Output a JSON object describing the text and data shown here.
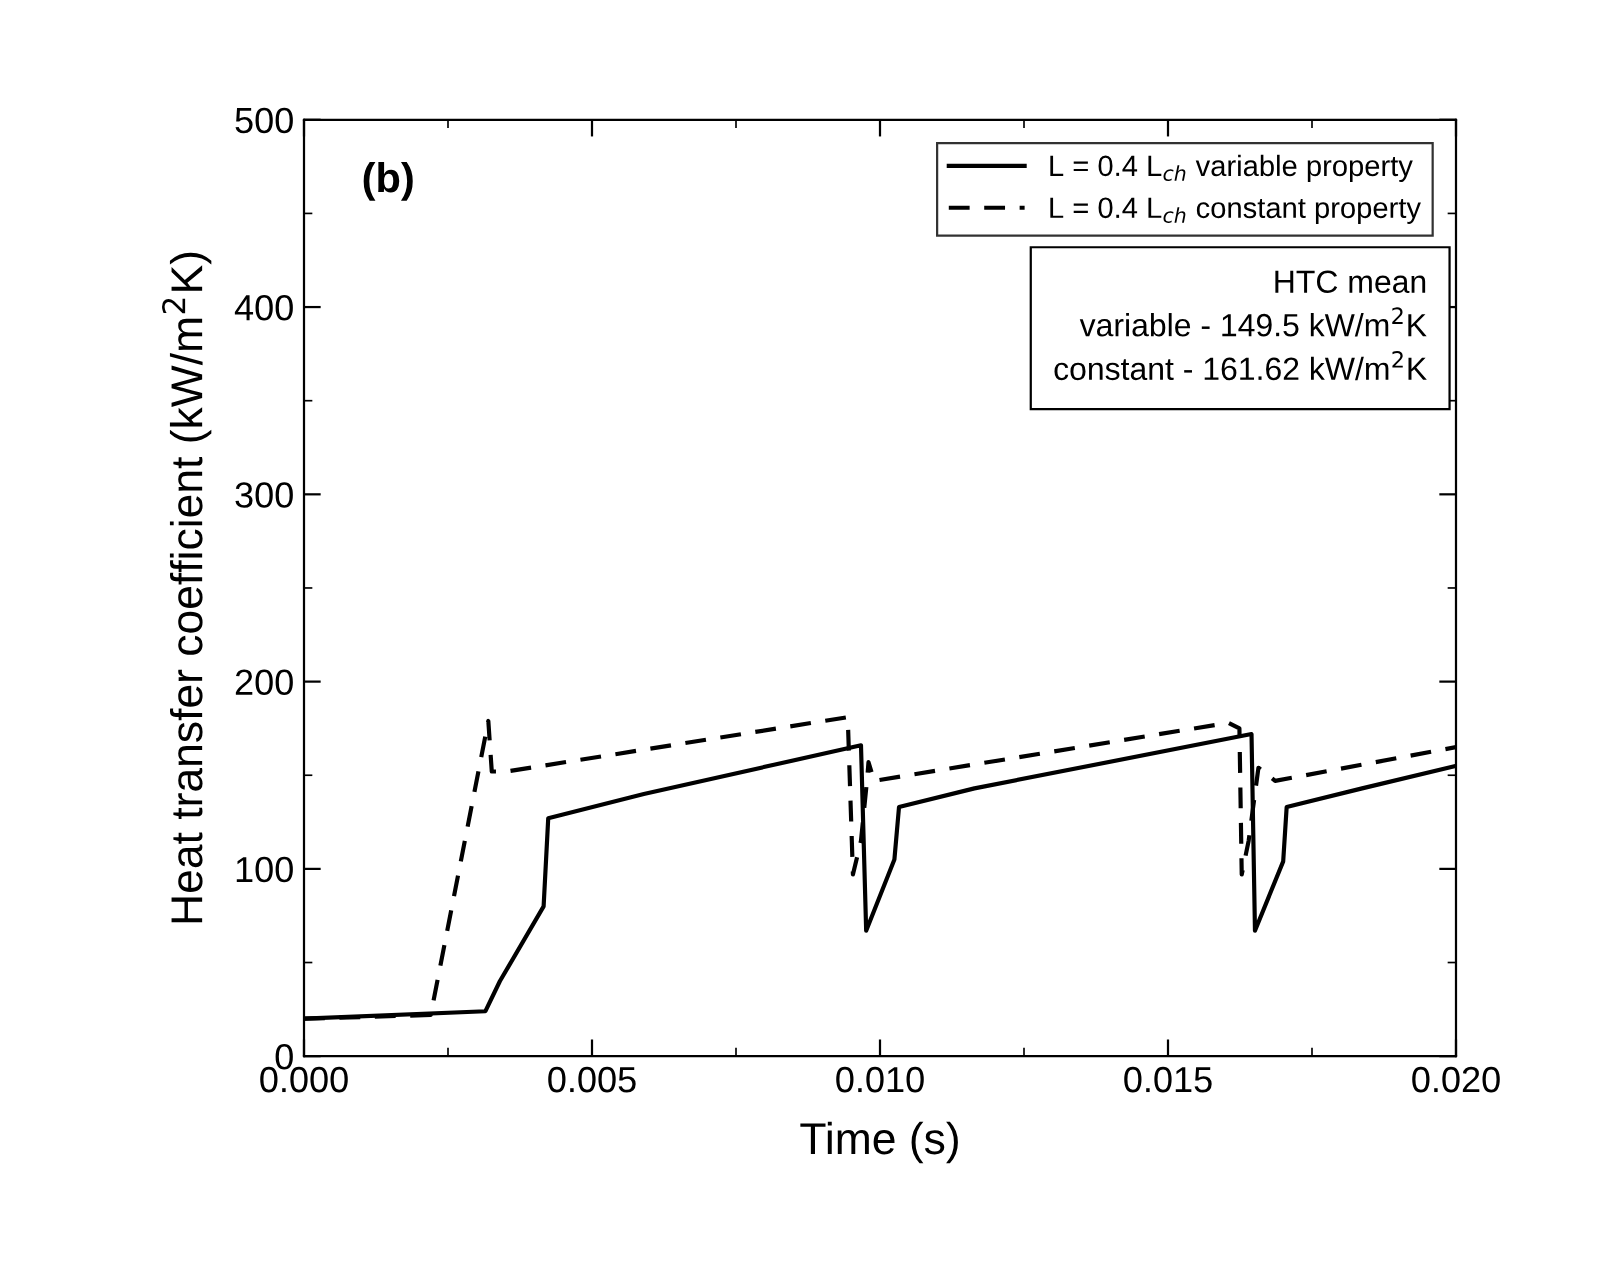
{
  "chart_data": {
    "type": "line",
    "xlabel": "Time (s)",
    "ylabel": "Heat transfer coefficient (kW/m$^{2}$K)",
    "xlim": [
      0,
      0.02
    ],
    "ylim": [
      0,
      500
    ],
    "xticks": [
      {
        "value": 0,
        "label": "0.000"
      },
      {
        "value": 0.005,
        "label": "0.005"
      },
      {
        "value": 0.01,
        "label": "0.010"
      },
      {
        "value": 0.015,
        "label": "0.015"
      },
      {
        "value": 0.02,
        "label": "0.020"
      }
    ],
    "yticks": [
      0,
      100,
      200,
      300,
      400,
      500
    ],
    "legend": "top right",
    "grid": false,
    "annotations": [
      "(b)",
      "HTC mean\nvariable - 149.5 kW/m$^{2}$K\nconstant - 161.62 kW/m$^{2}$K"
    ],
    "series": [
      {
        "name": "L = 0.4 L$_{ch}$ variable property",
        "color": "#000000",
        "line_style": "solid",
        "x": [
          0,
          0.00315,
          0.0034,
          0.00416,
          0.00424,
          0.0059,
          0.00967,
          0.00976,
          0.01025,
          0.01033,
          0.01164,
          0.01645,
          0.01651,
          0.017,
          0.01706,
          0.01837,
          0.02
        ],
        "values": [
          20,
          24,
          40,
          80,
          127,
          140,
          166,
          67,
          105,
          133,
          143,
          172,
          67,
          104,
          133,
          143,
          155
        ]
      },
      {
        "name": "L = 0.4 L$_{ch}$ constant property",
        "color": "#000000",
        "line_style": "dashed",
        "x": [
          0,
          0.0022,
          0.0032,
          0.00326,
          0.00352,
          0.00944,
          0.00953,
          0.00967,
          0.00978,
          0.0098,
          0.0099,
          0.01605,
          0.01624,
          0.01628,
          0.0164,
          0.01657,
          0.01686,
          0.02
        ],
        "values": [
          20,
          22,
          179,
          152,
          152,
          181,
          97,
          115,
          149,
          157,
          147,
          178,
          175,
          97,
          115,
          154,
          147,
          165
        ]
      }
    ]
  }
}
